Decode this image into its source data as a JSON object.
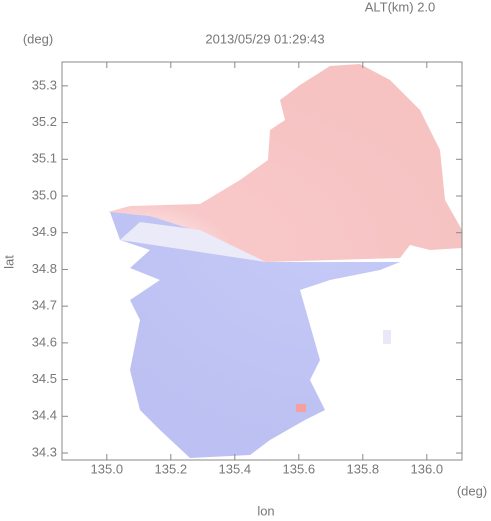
{
  "chart_data": {
    "type": "image",
    "title": "2013/05/29 01:29:43",
    "subtitle": "ALT(km) 2.0",
    "xlabel": "lon",
    "ylabel": "lat",
    "xunit": "(deg)",
    "yunit": "(deg)",
    "xlim": [
      134.86,
      136.11
    ],
    "ylim": [
      34.281,
      35.365
    ],
    "xticks": [
      {
        "value": 135,
        "label": "135.0"
      },
      135.2,
      135.4,
      135.6,
      135.8,
      {
        "value": 136,
        "label": "136.0"
      }
    ],
    "yticks": [
      34.3,
      34.4,
      34.5,
      34.6,
      34.7,
      34.8,
      34.9,
      {
        "value": 35,
        "label": "35.0"
      },
      35.1,
      35.2,
      35.3
    ]
  }
}
